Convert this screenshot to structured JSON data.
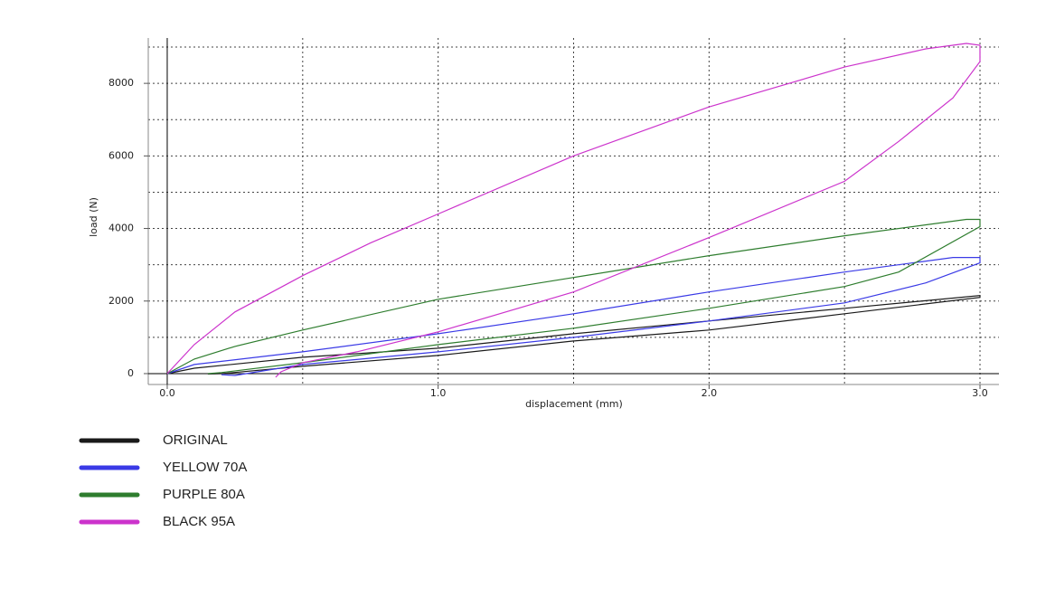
{
  "chart_data": {
    "type": "line",
    "x_label": "displacement (mm)",
    "y_label": "load (N)",
    "xlim": [
      -0.07,
      3.07
    ],
    "ylim": [
      -300,
      9250
    ],
    "xticks": [
      {
        "value": 0,
        "label": "0.0"
      },
      {
        "value": 1,
        "label": "1.0"
      },
      {
        "value": 2,
        "label": "2.0"
      },
      {
        "value": 3,
        "label": "3.0"
      }
    ],
    "yticks": [
      0,
      2000,
      4000,
      6000,
      8000
    ],
    "xgrid": [
      0.5,
      1,
      1.5,
      2,
      2.5,
      3
    ],
    "ygrid": [
      1000,
      2000,
      3000,
      4000,
      5000,
      6000,
      7000,
      8000,
      9000
    ],
    "grid": true,
    "legend": "bottom-left",
    "series": [
      {
        "name": "ORIGINAL",
        "color": "#1a1a1a",
        "x": [
          0,
          0.1,
          0.5,
          1.0,
          1.5,
          2.0,
          2.5,
          3.0,
          3.0,
          2.5,
          2.0,
          1.5,
          1.0,
          0.5,
          0.2,
          0.15
        ],
        "values": [
          0,
          150,
          450,
          700,
          1100,
          1450,
          1800,
          2150,
          2100,
          1650,
          1200,
          900,
          500,
          200,
          0,
          -10
        ]
      },
      {
        "name": "YELLOW 70A",
        "color": "#3a3ae6",
        "x": [
          0,
          0.1,
          0.5,
          1.0,
          1.5,
          2.0,
          2.5,
          2.9,
          3.0,
          3.0,
          2.8,
          2.5,
          2.0,
          1.5,
          1.0,
          0.5,
          0.25,
          0.2
        ],
        "values": [
          0,
          250,
          600,
          1100,
          1650,
          2250,
          2800,
          3200,
          3200,
          3050,
          2500,
          1950,
          1450,
          1000,
          600,
          250,
          -50,
          -30
        ]
      },
      {
        "name": "PURPLE 80A",
        "color": "#2e7d2e",
        "x": [
          0,
          0.1,
          0.25,
          0.5,
          1.0,
          1.5,
          2.0,
          2.5,
          2.95,
          3.0,
          3.0,
          2.7,
          2.5,
          2.0,
          1.5,
          1.0,
          0.5,
          0.2,
          0.15
        ],
        "values": [
          0,
          400,
          750,
          1200,
          2050,
          2650,
          3250,
          3800,
          4250,
          4250,
          4050,
          2800,
          2400,
          1800,
          1250,
          800,
          300,
          30,
          0
        ]
      },
      {
        "name": "BLACK 95A",
        "color": "#cc33cc",
        "x": [
          0,
          0.1,
          0.25,
          0.5,
          0.75,
          1.0,
          1.5,
          2.0,
          2.5,
          2.8,
          2.95,
          3.0,
          3.0,
          2.9,
          2.7,
          2.5,
          2.0,
          1.5,
          1.0,
          0.7,
          0.5,
          0.42,
          0.4
        ],
        "values": [
          0,
          800,
          1700,
          2700,
          3600,
          4400,
          6000,
          7350,
          8450,
          8950,
          9100,
          9050,
          8600,
          7600,
          6400,
          5300,
          3750,
          2250,
          1150,
          600,
          300,
          50,
          -100
        ]
      }
    ]
  }
}
